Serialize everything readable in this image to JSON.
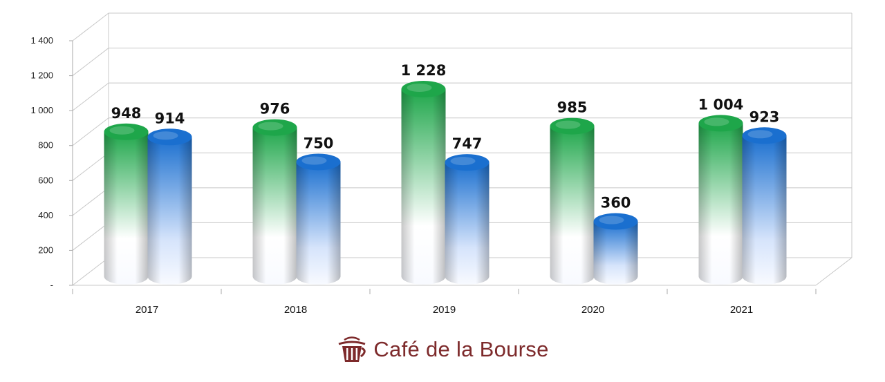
{
  "chart_data": {
    "type": "bar",
    "categories": [
      "2017",
      "2018",
      "2019",
      "2020",
      "2021"
    ],
    "series": [
      {
        "values": [
          948,
          976,
          1228,
          985,
          1004
        ],
        "color": "#1ea64a",
        "value_labels": [
          "948",
          "976",
          "1 228",
          "985",
          "1 004"
        ]
      },
      {
        "values": [
          914,
          750,
          747,
          360,
          923
        ],
        "color": "#1a6fcf",
        "value_labels": [
          "914",
          "750",
          "747",
          "360",
          "923"
        ]
      }
    ],
    "y_ticks": [
      {
        "value": 0,
        "label": "-"
      },
      {
        "value": 200,
        "label": "200"
      },
      {
        "value": 400,
        "label": "400"
      },
      {
        "value": 600,
        "label": "600"
      },
      {
        "value": 800,
        "label": "800"
      },
      {
        "value": 1000,
        "label": "1 000"
      },
      {
        "value": 1200,
        "label": "1 200"
      },
      {
        "value": 1400,
        "label": "1 400"
      }
    ],
    "ylim": [
      0,
      1400
    ],
    "grid": true,
    "style": "3d-cylinder"
  },
  "brand": {
    "name": "Café de la Bourse",
    "icon": "cup-icon",
    "color": "#7d2a2b"
  }
}
